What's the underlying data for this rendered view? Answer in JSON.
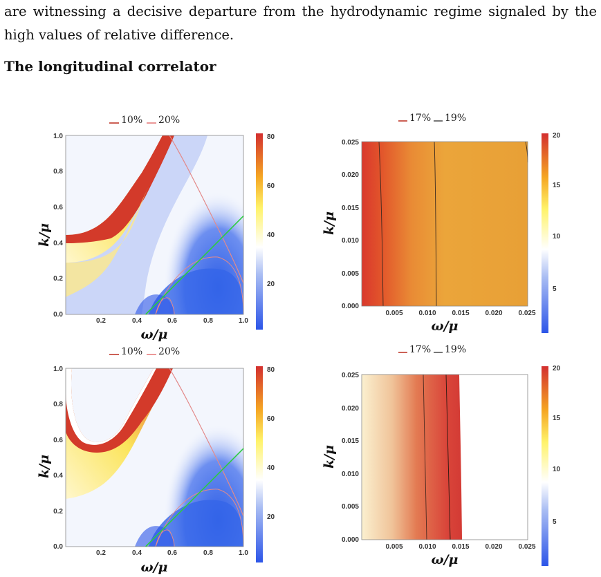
{
  "text": {
    "paragraph": "are witnessing a decisive departure from the hydrodynamic regime signaled by the high values of relative difference.",
    "heading": "The longitudinal correlator"
  },
  "colors": {
    "contour_10": "#c0392b",
    "contour_20": "#e67e7e",
    "contour_17": "#c0392b",
    "contour_19": "#555555",
    "green_line": "#2ecc40",
    "colorbar_high": "#d32f2f",
    "colorbar_mid": "#ffeb3b",
    "colorbar_white": "#ffffff",
    "colorbar_low": "#2c55e8"
  },
  "chart_data": [
    {
      "type": "heatmap",
      "panel": "top-left",
      "legend": [
        "10%",
        "20%"
      ],
      "legend_placement": "top-center",
      "xlabel": "ω/μ",
      "ylabel": "k/μ",
      "xlim": [
        0.0,
        1.0
      ],
      "ylim": [
        0.0,
        1.0
      ],
      "xticks": [
        "0.2",
        "0.4",
        "0.6",
        "0.8",
        "1.0"
      ],
      "yticks": [
        "0.0",
        "0.2",
        "0.4",
        "0.6",
        "0.8",
        "1.0"
      ],
      "colorbar_ticks": [
        "20",
        "40",
        "60",
        "80"
      ],
      "colorbar_range": [
        0,
        85
      ],
      "green_line": {
        "x": [
          0.45,
          1.0
        ],
        "y": [
          0.0,
          0.55
        ]
      }
    },
    {
      "type": "heatmap",
      "panel": "top-right",
      "legend": [
        "17%",
        "19%"
      ],
      "legend_placement": "top-center",
      "xlabel": "ω/μ",
      "ylabel": "k/μ",
      "xlim": [
        0.0,
        0.025
      ],
      "ylim": [
        0.0,
        0.025
      ],
      "xticks": [
        "0.005",
        "0.010",
        "0.015",
        "0.020",
        "0.025"
      ],
      "yticks": [
        "0.000",
        "0.005",
        "0.010",
        "0.015",
        "0.020",
        "0.025"
      ],
      "colorbar_ticks": [
        "5",
        "10",
        "15",
        "20"
      ],
      "colorbar_range": [
        0,
        20
      ]
    },
    {
      "type": "heatmap",
      "panel": "bottom-left",
      "legend": [
        "10%",
        "20%"
      ],
      "legend_placement": "top-center",
      "xlabel": "ω/μ",
      "ylabel": "k/μ",
      "xlim": [
        0.0,
        1.0
      ],
      "ylim": [
        0.0,
        1.0
      ],
      "xticks": [
        "0.2",
        "0.4",
        "0.6",
        "0.8",
        "1.0"
      ],
      "yticks": [
        "0.0",
        "0.2",
        "0.4",
        "0.6",
        "0.8",
        "1.0"
      ],
      "colorbar_ticks": [
        "20",
        "40",
        "60",
        "80"
      ],
      "colorbar_range": [
        0,
        85
      ],
      "green_line": {
        "x": [
          0.45,
          1.0
        ],
        "y": [
          0.0,
          0.55
        ]
      }
    },
    {
      "type": "heatmap",
      "panel": "bottom-right",
      "legend": [
        "17%",
        "19%"
      ],
      "legend_placement": "top-center",
      "xlabel": "ω/μ",
      "ylabel": "k/μ",
      "xlim": [
        0.0,
        0.025
      ],
      "ylim": [
        0.0,
        0.025
      ],
      "xticks": [
        "0.005",
        "0.010",
        "0.015",
        "0.020",
        "0.025"
      ],
      "yticks": [
        "0.000",
        "0.005",
        "0.010",
        "0.015",
        "0.020",
        "0.025"
      ],
      "colorbar_ticks": [
        "5",
        "10",
        "15",
        "20"
      ],
      "colorbar_range": [
        0,
        20
      ]
    }
  ]
}
